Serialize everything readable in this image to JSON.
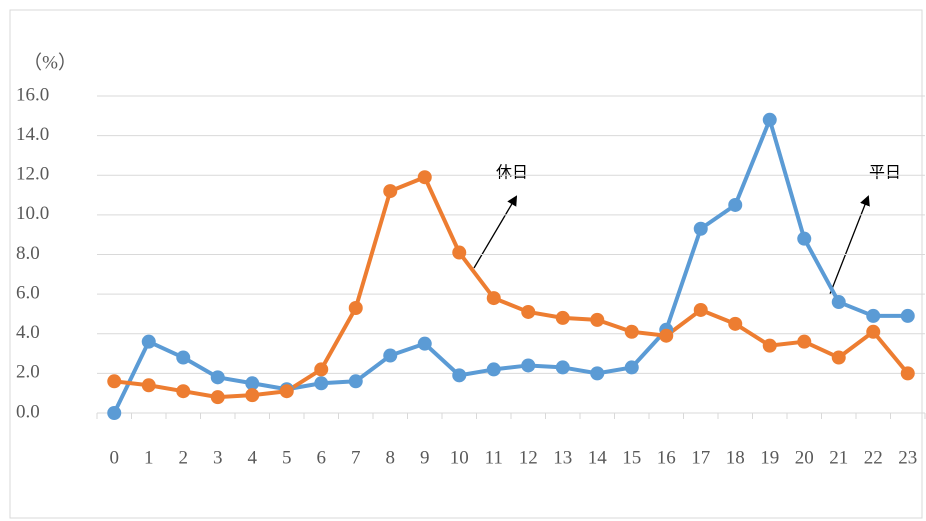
{
  "chart_data": {
    "type": "line",
    "y_label": "（%）",
    "annotations": [
      "休日",
      "平日"
    ],
    "categories": [
      "0",
      "1",
      "2",
      "3",
      "4",
      "5",
      "6",
      "7",
      "8",
      "9",
      "10",
      "11",
      "12",
      "13",
      "14",
      "15",
      "16",
      "17",
      "18",
      "19",
      "20",
      "21",
      "22",
      "23"
    ],
    "series": [
      {
        "name": "平日",
        "color": "#5b9bd5",
        "values": [
          0,
          3.6,
          2.8,
          1.8,
          1.5,
          1.2,
          1.5,
          1.6,
          2.9,
          3.5,
          1.9,
          2.2,
          2.4,
          2.3,
          2.0,
          2.3,
          4.2,
          9.3,
          10.5,
          14.8,
          8.8,
          5.6,
          4.9,
          4.9
        ]
      },
      {
        "name": "休日",
        "color": "#ed7d31",
        "values": [
          1.6,
          1.4,
          1.1,
          0.8,
          0.9,
          1.1,
          2.2,
          5.3,
          11.2,
          11.9,
          8.1,
          5.8,
          5.1,
          4.8,
          4.7,
          4.1,
          3.9,
          5.2,
          4.5,
          3.4,
          3.6,
          2.8,
          4.1,
          2.0
        ]
      }
    ],
    "ylim": [
      0,
      16
    ],
    "yticks": [
      {
        "value": 0,
        "label": "0.0"
      },
      {
        "value": 2,
        "label": "2.0"
      },
      {
        "value": 4,
        "label": "4.0"
      },
      {
        "value": 6,
        "label": "6.0"
      },
      {
        "value": 8,
        "label": "8.0"
      },
      {
        "value": 10,
        "label": "10.0"
      },
      {
        "value": 12,
        "label": "12.0"
      },
      {
        "value": 14,
        "label": "14.0"
      },
      {
        "value": 16,
        "label": "16.0"
      }
    ],
    "grid": true
  }
}
